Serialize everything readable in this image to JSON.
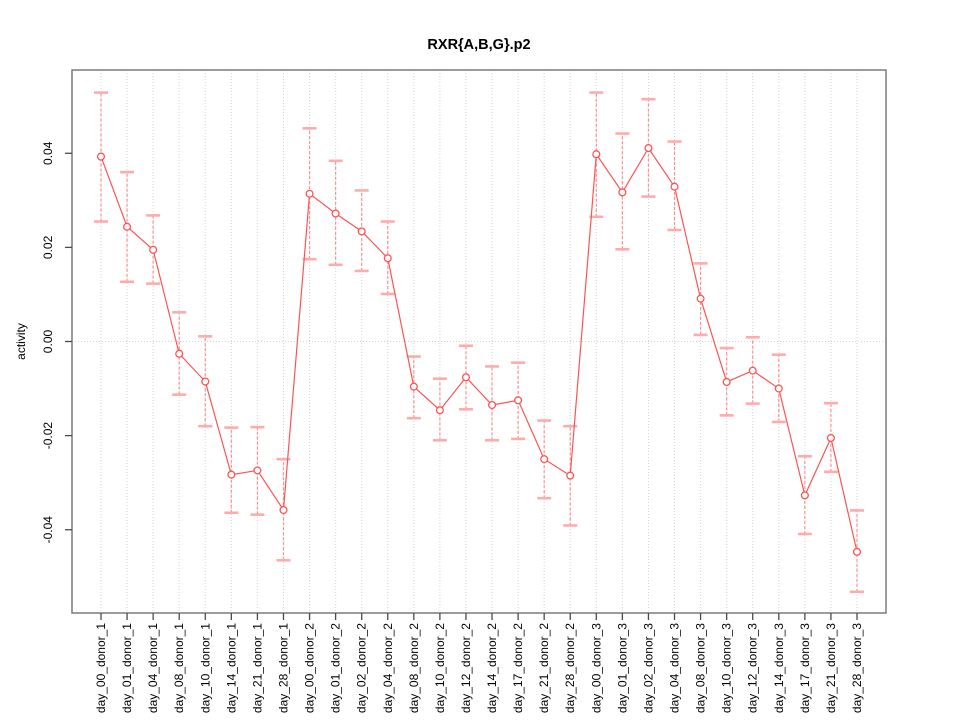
{
  "chart_data": {
    "type": "line",
    "title": "RXR{A,B,G}.p2",
    "xlabel": "",
    "ylabel": "activity",
    "legend": "none",
    "categories": [
      "day_00_donor_1",
      "day_01_donor_1",
      "day_04_donor_1",
      "day_08_donor_1",
      "day_10_donor_1",
      "day_14_donor_1",
      "day_21_donor_1",
      "day_28_donor_1",
      "day_00_donor_2",
      "day_01_donor_2",
      "day_02_donor_2",
      "day_04_donor_2",
      "day_08_donor_2",
      "day_10_donor_2",
      "day_12_donor_2",
      "day_14_donor_2",
      "day_17_donor_2",
      "day_21_donor_2",
      "day_28_donor_2",
      "day_00_donor_3",
      "day_01_donor_3",
      "day_02_donor_3",
      "day_04_donor_3",
      "day_08_donor_3",
      "day_10_donor_3",
      "day_12_donor_3",
      "day_14_donor_3",
      "day_17_donor_3",
      "day_21_donor_3",
      "day_28_donor_3"
    ],
    "series": [
      {
        "name": "activity",
        "marker": "open-circle",
        "values": [
          0.0393,
          0.0244,
          0.0195,
          -0.0026,
          -0.0085,
          -0.0283,
          -0.0274,
          -0.0358,
          0.0314,
          0.0272,
          0.0234,
          0.0177,
          -0.0096,
          -0.0146,
          -0.0076,
          -0.0135,
          -0.0125,
          -0.025,
          -0.0285,
          0.0398,
          0.0317,
          0.0411,
          0.0329,
          0.0091,
          -0.0086,
          -0.0062,
          -0.01,
          -0.0327,
          -0.0205,
          -0.0447
        ],
        "err_lo": [
          0.0255,
          0.0127,
          0.0123,
          -0.0113,
          -0.018,
          -0.0364,
          -0.0368,
          -0.0465,
          0.0175,
          0.0163,
          0.015,
          0.0101,
          -0.0163,
          -0.021,
          -0.0144,
          -0.021,
          -0.0207,
          -0.0333,
          -0.0391,
          0.0265,
          0.0196,
          0.0308,
          0.0237,
          0.0014,
          -0.0157,
          -0.0132,
          -0.0171,
          -0.0409,
          -0.0277,
          -0.0532
        ],
        "err_hi": [
          0.0529,
          0.036,
          0.0268,
          0.0062,
          0.0011,
          -0.0183,
          -0.0182,
          -0.025,
          0.0453,
          0.0384,
          0.0321,
          0.0255,
          -0.0032,
          -0.0079,
          -0.0009,
          -0.0053,
          -0.0045,
          -0.0168,
          -0.018,
          0.0529,
          0.0442,
          0.0515,
          0.0425,
          0.0166,
          -0.0014,
          0.0009,
          -0.0028,
          -0.0244,
          -0.0131,
          -0.0359
        ]
      }
    ],
    "ylim": [
      -0.0577,
      0.0577
    ],
    "yticks": {
      "values": [
        -0.04,
        -0.02,
        0.0,
        0.02,
        0.04
      ],
      "labels": [
        "-0.04",
        "-0.02",
        "0.00",
        "0.02",
        "0.04"
      ]
    },
    "grid": {
      "vertical": "dotted line at every category",
      "horizontal": "dotted line at y = 0 only",
      "style": "dotted"
    },
    "colors": {
      "line": "#ff5353",
      "marker_stroke": "#ff5353",
      "marker_fill": "#ffffff",
      "errorbar_line": "#ff8f8f",
      "errorbar_cap": "#ffabab",
      "grid": "#d4d4d4",
      "box": "#7a7a7a",
      "tick": "#4a4a4a",
      "text": "#000000",
      "background": "#ffffff"
    }
  }
}
